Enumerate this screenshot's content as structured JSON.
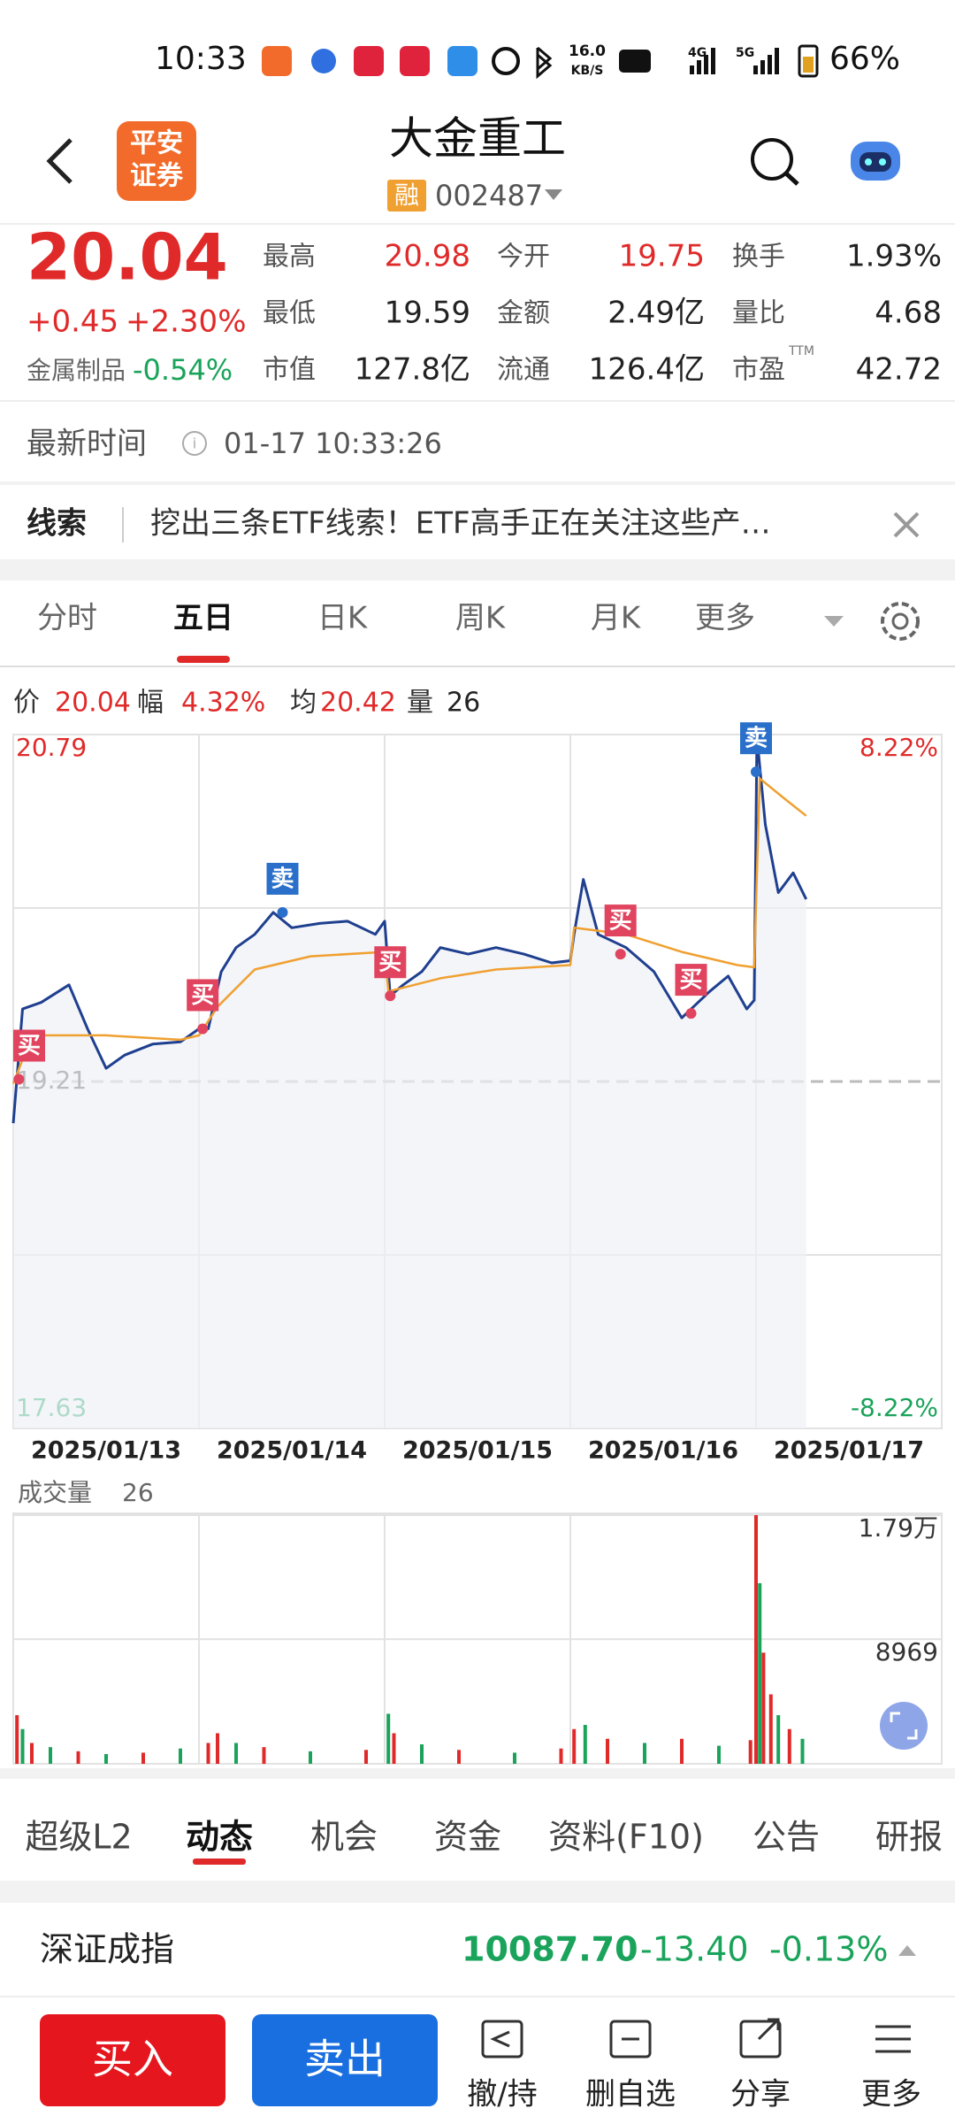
{
  "status_bar": {
    "time": "10:33",
    "speed": "16.0",
    "speed_unit": "KB/S",
    "net1": "4G",
    "net2": "5G",
    "battery": "66%"
  },
  "header": {
    "logo_top": "平安",
    "logo_bottom": "证券",
    "title": "大金重工",
    "badge": "融",
    "code": "002487"
  },
  "quote": {
    "price": "20.04",
    "change": "+0.45",
    "change_pct": "+2.30%",
    "sector": "金属制品",
    "sector_change": "-0.54%",
    "fields": [
      {
        "label": "最高",
        "value": "20.98",
        "color": "#e02a2a"
      },
      {
        "label": "今开",
        "value": "19.75",
        "color": "#e02a2a"
      },
      {
        "label": "换手",
        "value": "1.93%",
        "color": "#222222"
      },
      {
        "label": "最低",
        "value": "19.59",
        "color": "#222222"
      },
      {
        "label": "金额",
        "value": "2.49亿",
        "color": "#222222"
      },
      {
        "label": "量比",
        "value": "4.68",
        "color": "#222222"
      },
      {
        "label": "市值",
        "value": "127.8亿",
        "color": "#222222"
      },
      {
        "label": "流通",
        "value": "126.4亿",
        "color": "#222222"
      },
      {
        "label": "市盈",
        "sup": "TTM",
        "value": "42.72",
        "color": "#222222"
      }
    ]
  },
  "update": {
    "label": "最新时间",
    "time": "01-17 10:33:26"
  },
  "clue": {
    "label": "线索",
    "text": "挖出三条ETF线索！ETF高手正在关注这些产…"
  },
  "chart_tabs": {
    "items": [
      "分时",
      "五日",
      "日K",
      "周K",
      "月K",
      "更多"
    ],
    "active": 1
  },
  "chart_data": {
    "type": "line",
    "info": [
      {
        "label": "价",
        "value": "20.04"
      },
      {
        "label": "幅",
        "value": "4.32%"
      },
      {
        "label": "均",
        "value": "20.42"
      },
      {
        "label": "量",
        "value": "26"
      }
    ],
    "xlim": [
      0,
      5
    ],
    "xticks": [
      {
        "value": 0.5,
        "label": "2025/01/13"
      },
      {
        "value": 1.5,
        "label": "2025/01/14"
      },
      {
        "value": 2.5,
        "label": "2025/01/15"
      },
      {
        "value": 3.5,
        "label": "2025/01/16"
      },
      {
        "value": 4.5,
        "label": "2025/01/17"
      }
    ],
    "ylim": [
      17.63,
      20.79
    ],
    "yticks": [
      20.79,
      19.21,
      17.63
    ],
    "y2lim": [
      -8.22,
      8.22
    ],
    "y2ticks": [
      {
        "value": 8.22,
        "label": "8.22%"
      },
      {
        "value": -8.22,
        "label": "-8.22%"
      }
    ],
    "series": [
      {
        "color": "#1f3f8f",
        "x": [
          0,
          0.05,
          0.15,
          0.3,
          0.4,
          0.5,
          0.6,
          0.75,
          0.9,
          1.0,
          1.05,
          1.12,
          1.2,
          1.3,
          1.4,
          1.5,
          1.65,
          1.8,
          1.95,
          2.0,
          2.03,
          2.1,
          2.2,
          2.3,
          2.45,
          2.6,
          2.75,
          2.9,
          3.0,
          3.02,
          3.07,
          3.15,
          3.3,
          3.45,
          3.6,
          3.75,
          3.85,
          3.95,
          3.99,
          4.005,
          4.05,
          4.12,
          4.2,
          4.27
        ],
        "values": [
          19.02,
          19.54,
          19.57,
          19.65,
          19.45,
          19.27,
          19.33,
          19.38,
          19.39,
          19.45,
          19.45,
          19.71,
          19.82,
          19.88,
          19.98,
          19.91,
          19.93,
          19.94,
          19.88,
          19.94,
          19.6,
          19.65,
          19.71,
          19.82,
          19.79,
          19.82,
          19.79,
          19.75,
          19.76,
          19.88,
          20.13,
          19.88,
          19.82,
          19.71,
          19.5,
          19.62,
          19.69,
          19.54,
          19.58,
          20.78,
          20.38,
          20.07,
          20.16,
          20.04
        ]
      },
      {
        "color": "#f0a030",
        "x": [
          0,
          0.1,
          0.5,
          0.9,
          1.0,
          1.1,
          1.3,
          1.6,
          2.0,
          2.02,
          2.3,
          2.6,
          3.0,
          3.02,
          3.3,
          3.6,
          3.9,
          3.99,
          4.02,
          4.15,
          4.27
        ],
        "values": [
          19.2,
          19.42,
          19.42,
          19.4,
          19.42,
          19.55,
          19.72,
          19.78,
          19.8,
          19.62,
          19.68,
          19.72,
          19.74,
          19.91,
          19.88,
          19.8,
          19.74,
          19.73,
          20.59,
          20.5,
          20.42
        ]
      }
    ],
    "markers": [
      {
        "label": "买",
        "x": 0.03,
        "price": 19.22,
        "color": "#e0445e"
      },
      {
        "label": "买",
        "x": 1.02,
        "price": 19.45,
        "color": "#e0445e"
      },
      {
        "label": "卖",
        "x": 1.45,
        "price": 19.98,
        "color": "#2a6fc9"
      },
      {
        "label": "买",
        "x": 2.03,
        "price": 19.6,
        "color": "#e0445e"
      },
      {
        "label": "买",
        "x": 3.27,
        "price": 19.79,
        "color": "#e0445e"
      },
      {
        "label": "买",
        "x": 3.65,
        "price": 19.52,
        "color": "#e0445e"
      },
      {
        "label": "卖",
        "x": 4.0,
        "price": 20.62,
        "color": "#2a6fc9"
      }
    ],
    "volume": {
      "label": "成交量",
      "current": "26",
      "ylim": [
        0,
        17900
      ],
      "yticks": [
        {
          "value": 17900,
          "label": "1.79万"
        },
        8969
      ],
      "up_color": "#e02a2a",
      "down_color": "#1aa35a",
      "x": [
        0.02,
        0.05,
        0.1,
        0.2,
        0.35,
        0.5,
        0.7,
        0.9,
        1.05,
        1.1,
        1.2,
        1.35,
        1.6,
        1.9,
        2.02,
        2.05,
        2.2,
        2.4,
        2.7,
        2.95,
        3.02,
        3.08,
        3.2,
        3.4,
        3.6,
        3.8,
        3.97,
        4.0,
        4.02,
        4.04,
        4.08,
        4.12,
        4.18,
        4.25
      ],
      "values": [
        3500,
        2500,
        1500,
        1200,
        900,
        700,
        800,
        1100,
        1500,
        2200,
        1500,
        1200,
        900,
        1000,
        3600,
        2200,
        1400,
        1000,
        800,
        1100,
        2500,
        2800,
        1800,
        1500,
        1800,
        1300,
        1700,
        17900,
        13000,
        8000,
        5000,
        3500,
        2500,
        1800
      ],
      "up": [
        true,
        false,
        true,
        false,
        true,
        false,
        true,
        false,
        true,
        true,
        false,
        true,
        false,
        true,
        false,
        true,
        false,
        true,
        false,
        true,
        true,
        false,
        true,
        false,
        true,
        false,
        true,
        true,
        false,
        true,
        true,
        false,
        true,
        false
      ]
    }
  },
  "bottom_tabs": {
    "items": [
      "超级L2",
      "动态",
      "机会",
      "资金",
      "资料(F10)",
      "公告",
      "研报"
    ],
    "active": 1
  },
  "index": {
    "name": "深证成指",
    "value": "10087.70",
    "change": "-13.40",
    "change_pct": "-0.13%"
  },
  "actions": {
    "buy": "买入",
    "sell": "卖出",
    "items": [
      "撤/持",
      "删自选",
      "分享",
      "更多"
    ]
  }
}
